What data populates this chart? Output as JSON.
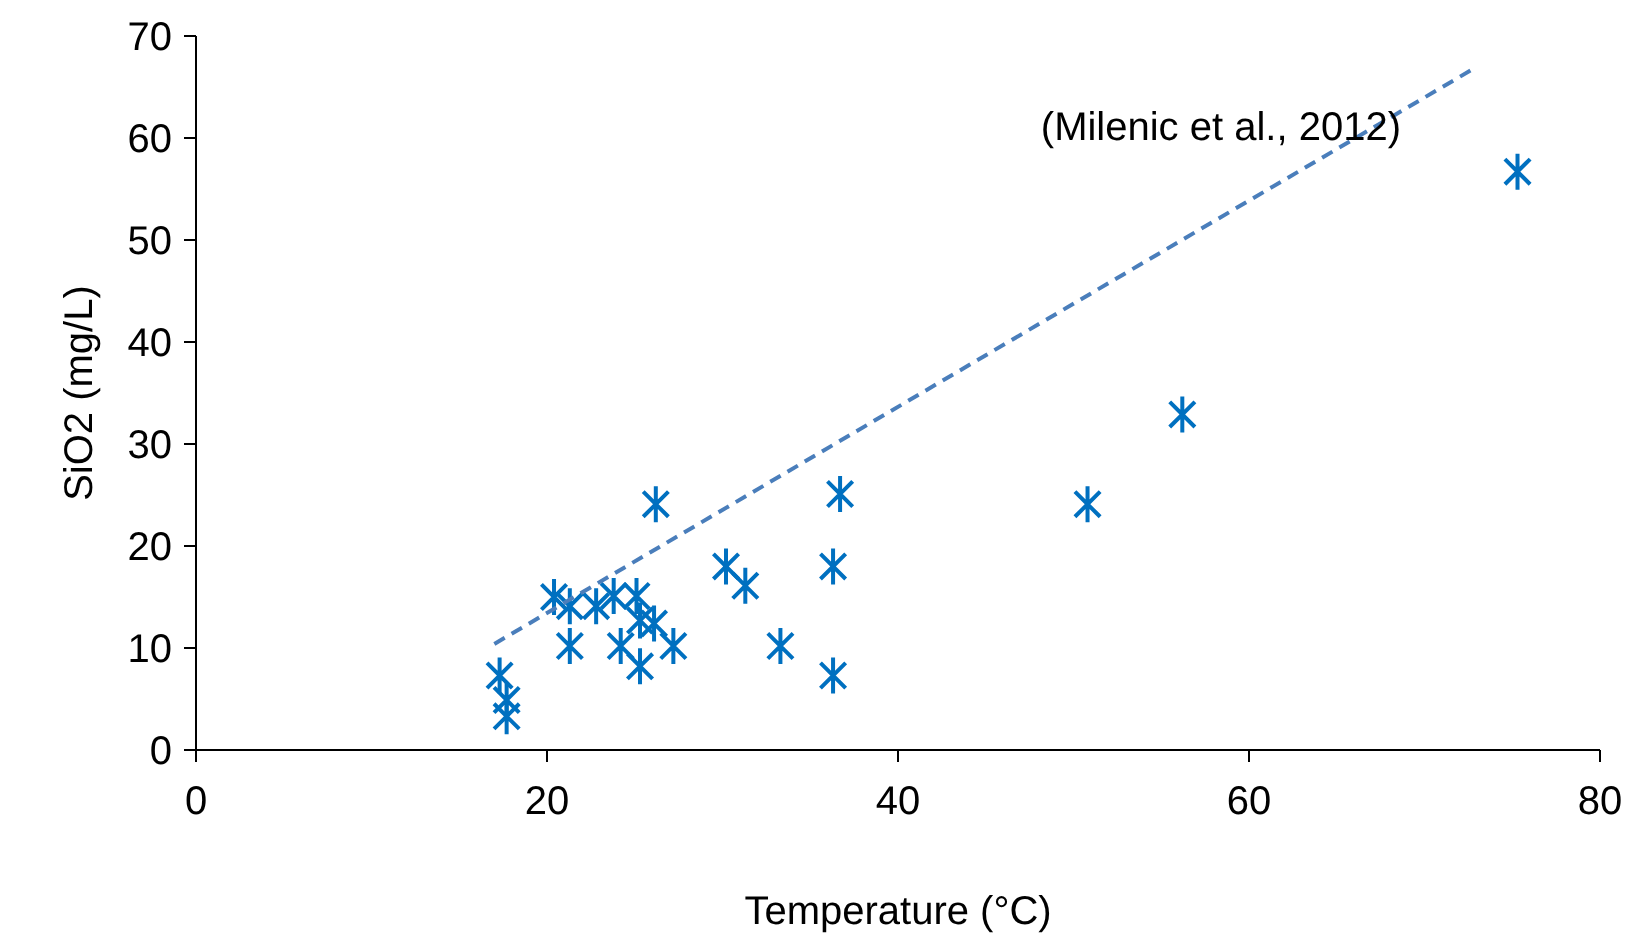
{
  "chart_data": {
    "type": "scatter",
    "xlabel": "Temperature (°C)",
    "ylabel": "SiO2 (mg/L)",
    "xlim": [
      0,
      80
    ],
    "ylim": [
      0,
      70
    ],
    "xticks": [
      0,
      20,
      40,
      60,
      80
    ],
    "yticks": [
      0,
      10,
      20,
      30,
      40,
      50,
      60,
      70
    ],
    "grid": false,
    "marker": "cross",
    "annotations": [
      "(Milenic et al., 2012)"
    ],
    "series": [
      {
        "color": "#0070c0",
        "x": [
          17.3,
          17.7,
          17.7,
          20.4,
          21.3,
          22.8,
          23.8,
          25.1,
          25.3,
          26.1,
          21.3,
          24.2,
          25.3,
          27.2,
          26.2,
          30.2,
          31.3,
          33.3,
          36.3,
          36.3,
          36.7,
          50.8,
          56.2,
          75.3
        ],
        "values": [
          7.3,
          4.9,
          3.3,
          15,
          14.1,
          14.1,
          15.1,
          15.1,
          12.7,
          12.4,
          10.2,
          10.2,
          8.2,
          10.2,
          24.1,
          18,
          16.1,
          10.2,
          18,
          7.3,
          25.1,
          24.1,
          32.9,
          56.7
        ]
      },
      {
        "type": "line",
        "color": "#4a7ebb",
        "line_style": "dashed",
        "marker": "none",
        "x": [
          17,
          73
        ],
        "values": [
          10.4,
          67
        ]
      }
    ]
  }
}
